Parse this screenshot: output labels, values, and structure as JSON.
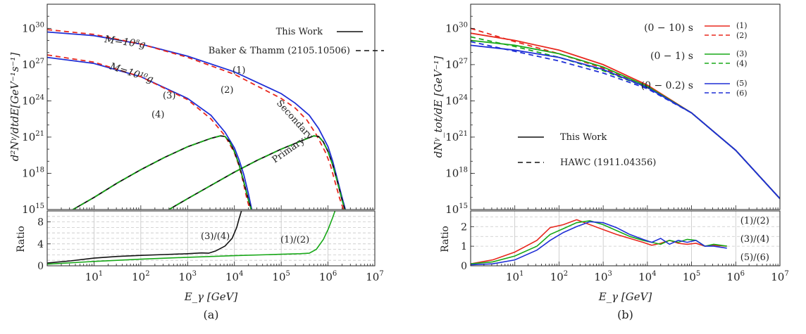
{
  "colors": {
    "red": "#e8281e",
    "blue": "#1f2fd6",
    "green": "#18a818",
    "black": "#111111"
  },
  "chart_data": [
    {
      "type": "line",
      "panel_label": "(a)",
      "xlabel": "E_γ [GeV]",
      "ylabel": "d²Nᵞ/dtdE[GeV⁻¹s⁻¹]",
      "xscale": "log",
      "yscale": "log",
      "xlim_exp": [
        0,
        7
      ],
      "ylim_exp": [
        15,
        32
      ],
      "x_ticks": [
        {
          "e": 1,
          "label": "10",
          "sup": "1"
        },
        {
          "e": 2,
          "label": "10",
          "sup": "2"
        },
        {
          "e": 3,
          "label": "10",
          "sup": "3"
        },
        {
          "e": 4,
          "label": "10",
          "sup": "4"
        },
        {
          "e": 5,
          "label": "10",
          "sup": "5"
        },
        {
          "e": 6,
          "label": "10",
          "sup": "6"
        },
        {
          "e": 7,
          "label": "10",
          "sup": "7"
        }
      ],
      "y_ticks": [
        {
          "e": 15,
          "label": "10",
          "sup": "15"
        },
        {
          "e": 18,
          "label": "10",
          "sup": "18"
        },
        {
          "e": 21,
          "label": "10",
          "sup": "21"
        },
        {
          "e": 24,
          "label": "10",
          "sup": "24"
        },
        {
          "e": 27,
          "label": "10",
          "sup": "27"
        },
        {
          "e": 30,
          "label": "10",
          "sup": "30"
        }
      ],
      "legend": [
        {
          "text": "This Work",
          "style": "solid"
        },
        {
          "text": "Baker & Thamm (2105.10506)",
          "style": "dashed"
        }
      ],
      "annotations": [
        {
          "text": "M=10⁸g",
          "color": "black"
        },
        {
          "text": "M=10¹⁰g",
          "color": "black"
        },
        {
          "text": "(1)",
          "color": "blue"
        },
        {
          "text": "(2)",
          "color": "red"
        },
        {
          "text": "(3)",
          "color": "blue"
        },
        {
          "text": "(4)",
          "color": "red"
        },
        {
          "text": "Secondary",
          "color": "black"
        },
        {
          "text": "Primary",
          "color": "black"
        }
      ],
      "series": [
        {
          "color": "blue",
          "style": "solid",
          "x": [
            0,
            1,
            2,
            3,
            4,
            5,
            5.3,
            5.6,
            5.8,
            6.0,
            6.1,
            6.2,
            6.3,
            6.37
          ],
          "y": [
            29.7,
            29.4,
            28.7,
            27.7,
            26.4,
            24.6,
            23.8,
            22.8,
            21.7,
            20.2,
            19.0,
            17.5,
            16.0,
            15.0
          ]
        },
        {
          "color": "red",
          "style": "dashed",
          "x": [
            0,
            1,
            2,
            3,
            4,
            5,
            5.3,
            5.55,
            5.75,
            5.95,
            6.05,
            6.15,
            6.25,
            6.33
          ],
          "y": [
            29.9,
            29.5,
            28.7,
            27.6,
            26.2,
            24.2,
            23.4,
            22.4,
            21.2,
            19.7,
            18.7,
            17.3,
            15.9,
            15.0
          ]
        },
        {
          "color": "blue",
          "style": "solid",
          "x": [
            0,
            1,
            2,
            3,
            3.5,
            3.8,
            4.0,
            4.1,
            4.2,
            4.3,
            4.37
          ],
          "y": [
            27.6,
            27.1,
            26.0,
            24.2,
            22.8,
            21.4,
            20.1,
            19.1,
            17.9,
            16.3,
            15.0
          ]
        },
        {
          "color": "red",
          "style": "dashed",
          "x": [
            0,
            1,
            2,
            3,
            3.5,
            3.8,
            4.0,
            4.1,
            4.18,
            4.26,
            4.33
          ],
          "y": [
            27.8,
            27.2,
            26.0,
            24.1,
            22.5,
            21.1,
            19.7,
            18.6,
            17.4,
            16.0,
            15.0
          ]
        },
        {
          "color": "black",
          "style": "solid",
          "x": [
            2.6,
            3.0,
            3.5,
            4.0,
            4.5,
            5.0,
            5.5,
            5.7,
            5.8,
            5.9,
            6.0,
            6.1,
            6.2,
            6.3,
            6.36
          ],
          "y": [
            15.0,
            15.9,
            17.0,
            18.1,
            19.1,
            20.0,
            20.8,
            21.1,
            21.05,
            20.6,
            19.8,
            18.7,
            17.3,
            15.8,
            15.0
          ]
        },
        {
          "color": "black",
          "style": "solid",
          "x": [
            0.55,
            1.0,
            1.5,
            2.0,
            2.5,
            3.0,
            3.5,
            3.7,
            3.8,
            3.9,
            4.0,
            4.1,
            4.2,
            4.3,
            4.36
          ],
          "y": [
            15.0,
            16.0,
            17.2,
            18.3,
            19.3,
            20.2,
            20.9,
            21.1,
            21.05,
            20.6,
            19.8,
            18.7,
            17.3,
            15.8,
            15.0
          ]
        }
      ],
      "ratio": {
        "ylabel": "Ratio",
        "ylim": [
          0,
          10
        ],
        "y_ticks": [
          0,
          4,
          8
        ],
        "annotations": [
          {
            "text": "(3)/(4)",
            "color": "black"
          },
          {
            "text": "(1)/(2)",
            "color": "green"
          }
        ],
        "series": [
          {
            "color": "black",
            "x": [
              0,
              0.5,
              1,
              1.5,
              2,
              2.5,
              3,
              3.3,
              3.45,
              3.6,
              3.8,
              3.95,
              4.05,
              4.1,
              4.15
            ],
            "y": [
              0.5,
              0.9,
              1.4,
              1.7,
              1.9,
              2.05,
              2.2,
              2.35,
              2.3,
              2.7,
              3.6,
              5.0,
              7.0,
              8.6,
              10
            ]
          },
          {
            "color": "green",
            "x": [
              0,
              1,
              2,
              3,
              4,
              5,
              5.4,
              5.6,
              5.75,
              5.9,
              6.0,
              6.1,
              6.15
            ],
            "y": [
              0.3,
              0.8,
              1.2,
              1.55,
              1.85,
              2.1,
              2.2,
              2.3,
              3.0,
              4.8,
              6.6,
              8.8,
              10
            ]
          }
        ]
      }
    },
    {
      "type": "line",
      "panel_label": "(b)",
      "xlabel": "E_γ [GeV]",
      "ylabel": "dNᵞ_tot/dE [GeV⁻¹]",
      "xscale": "log",
      "yscale": "log",
      "xlim_exp": [
        0,
        7
      ],
      "ylim_exp": [
        15,
        32
      ],
      "x_ticks": [
        {
          "e": 1,
          "label": "10",
          "sup": "1"
        },
        {
          "e": 2,
          "label": "10",
          "sup": "2"
        },
        {
          "e": 3,
          "label": "10",
          "sup": "3"
        },
        {
          "e": 4,
          "label": "10",
          "sup": "4"
        },
        {
          "e": 5,
          "label": "10",
          "sup": "5"
        },
        {
          "e": 6,
          "label": "10",
          "sup": "6"
        },
        {
          "e": 7,
          "label": "10",
          "sup": "7"
        }
      ],
      "y_ticks": [
        {
          "e": 15,
          "label": "10",
          "sup": "15"
        },
        {
          "e": 18,
          "label": "10",
          "sup": "18"
        },
        {
          "e": 21,
          "label": "10",
          "sup": "21"
        },
        {
          "e": 24,
          "label": "10",
          "sup": "24"
        },
        {
          "e": 27,
          "label": "10",
          "sup": "27"
        },
        {
          "e": 30,
          "label": "10",
          "sup": "30"
        }
      ],
      "legend": [
        {
          "text": "This Work",
          "style": "solid"
        },
        {
          "text": "HAWC (1911.04356)",
          "style": "dashed"
        }
      ],
      "group_legend": [
        {
          "text": "(0 − 10) s",
          "color": "red",
          "solid": "(1)",
          "dashed": "(2)"
        },
        {
          "text": "(0 − 1) s",
          "color": "green",
          "solid": "(3)",
          "dashed": "(4)"
        },
        {
          "text": "(0 − 0.2) s",
          "color": "blue",
          "solid": "(5)",
          "dashed": "(6)"
        }
      ],
      "series": [
        {
          "name": "(1)",
          "color": "red",
          "style": "solid",
          "x": [
            0,
            1,
            2,
            3,
            4,
            5,
            6,
            7
          ],
          "y": [
            29.6,
            29.0,
            28.2,
            27.0,
            25.3,
            23.0,
            19.9,
            15.9
          ]
        },
        {
          "name": "(2)",
          "color": "red",
          "style": "dashed",
          "x": [
            0,
            1,
            2,
            3,
            4,
            5,
            6,
            7
          ],
          "y": [
            30.0,
            28.9,
            27.9,
            26.7,
            25.2,
            23.0,
            19.9,
            15.9
          ]
        },
        {
          "name": "(3)",
          "color": "green",
          "style": "solid",
          "x": [
            0,
            1,
            2,
            3,
            4,
            5,
            6,
            7
          ],
          "y": [
            29.0,
            28.6,
            27.9,
            26.8,
            25.2,
            23.0,
            19.9,
            15.9
          ]
        },
        {
          "name": "(4)",
          "color": "green",
          "style": "dashed",
          "x": [
            0,
            1,
            2,
            3,
            4,
            5,
            6,
            7
          ],
          "y": [
            29.3,
            28.5,
            27.6,
            26.5,
            25.1,
            23.0,
            19.9,
            15.9
          ]
        },
        {
          "name": "(5)",
          "color": "blue",
          "style": "solid",
          "x": [
            0,
            1,
            2,
            3,
            4,
            5,
            6,
            7
          ],
          "y": [
            28.6,
            28.2,
            27.6,
            26.6,
            25.1,
            23.0,
            19.9,
            15.9
          ]
        },
        {
          "name": "(6)",
          "color": "blue",
          "style": "dashed",
          "x": [
            0,
            1,
            2,
            3,
            4,
            5,
            6,
            7
          ],
          "y": [
            28.9,
            28.1,
            27.3,
            26.3,
            25.0,
            23.0,
            19.9,
            15.9
          ]
        }
      ],
      "ratio": {
        "ylabel": "Ratio",
        "ylim": [
          0,
          2.8
        ],
        "y_ticks": [
          0,
          1,
          2
        ],
        "annotations": [
          {
            "text": "(1)/(2)",
            "color": "red"
          },
          {
            "text": "(3)/(4)",
            "color": "green"
          },
          {
            "text": "(5)/(6)",
            "color": "blue"
          }
        ],
        "series": [
          {
            "color": "red",
            "x": [
              0,
              0.5,
              1,
              1.5,
              1.8,
              2.1,
              2.4,
              2.7,
              3,
              3.3,
              3.6,
              3.9,
              4.1,
              4.3,
              4.5,
              4.7,
              4.9,
              5.1,
              5.3,
              5.5,
              5.8
            ],
            "y": [
              0.1,
              0.3,
              0.7,
              1.3,
              1.95,
              2.1,
              2.35,
              2.1,
              1.85,
              1.6,
              1.4,
              1.2,
              1.05,
              1.15,
              1.3,
              1.15,
              1.1,
              1.15,
              1.0,
              1.05,
              1.0
            ]
          },
          {
            "color": "green",
            "x": [
              0,
              0.5,
              1,
              1.5,
              1.8,
              2.1,
              2.4,
              2.7,
              3,
              3.3,
              3.6,
              3.9,
              4.1,
              4.3,
              4.5,
              4.7,
              4.9,
              5.1,
              5.3,
              5.5,
              5.8
            ],
            "y": [
              0.1,
              0.2,
              0.5,
              1.0,
              1.6,
              1.9,
              2.2,
              2.3,
              2.1,
              1.8,
              1.5,
              1.3,
              1.2,
              1.1,
              1.3,
              1.2,
              1.35,
              1.3,
              1.0,
              1.1,
              1.0
            ]
          },
          {
            "color": "blue",
            "x": [
              0,
              0.5,
              1,
              1.5,
              1.8,
              2.1,
              2.4,
              2.7,
              3,
              3.3,
              3.6,
              3.9,
              4.1,
              4.3,
              4.5,
              4.7,
              4.9,
              5.1,
              5.3,
              5.5,
              5.8
            ],
            "y": [
              0.05,
              0.1,
              0.3,
              0.8,
              1.3,
              1.7,
              2.0,
              2.25,
              2.2,
              1.95,
              1.6,
              1.35,
              1.2,
              1.4,
              1.1,
              1.3,
              1.2,
              1.3,
              1.0,
              1.0,
              0.9
            ]
          }
        ]
      }
    }
  ]
}
